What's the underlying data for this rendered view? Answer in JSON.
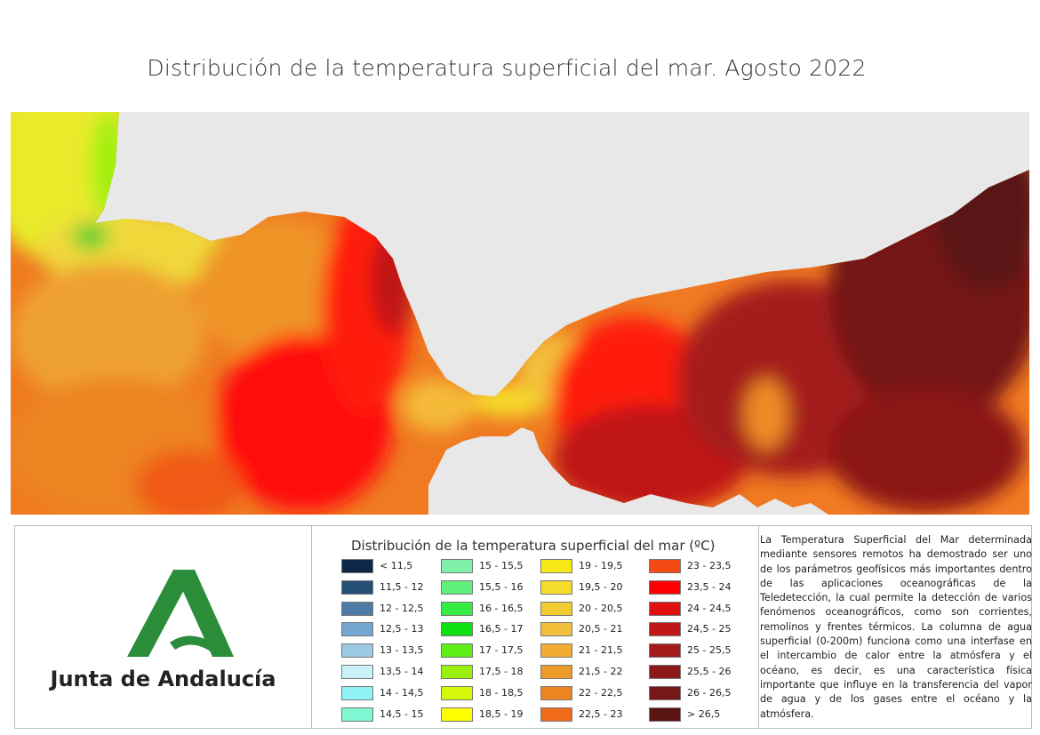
{
  "title": "Distribución de la temperatura superficial del mar. Agosto 2022",
  "logo": {
    "text": "Junta de Andalucía",
    "colors": [
      "#2b8c3a"
    ]
  },
  "legend": {
    "title": "Distribución de la temperatura superficial del mar (ºC)",
    "items": [
      {
        "label": "< 11,5",
        "color": "#0c2846"
      },
      {
        "label": "11,5 - 12",
        "color": "#254e76"
      },
      {
        "label": "12 - 12,5",
        "color": "#4d7ba6"
      },
      {
        "label": "12,5 - 13",
        "color": "#75a5d1"
      },
      {
        "label": "13 - 13,5",
        "color": "#9cc9e3"
      },
      {
        "label": "13,5 - 14",
        "color": "#c9f3f7"
      },
      {
        "label": "14 - 14,5",
        "color": "#8ff2f5"
      },
      {
        "label": "14,5 - 15",
        "color": "#7ef7d2"
      },
      {
        "label": "15 - 15,5",
        "color": "#7ff0a8"
      },
      {
        "label": "15,5 - 16",
        "color": "#5fef7a"
      },
      {
        "label": "16 - 16,5",
        "color": "#35ec42"
      },
      {
        "label": "16,5 - 17",
        "color": "#0fe00f"
      },
      {
        "label": "17 - 17,5",
        "color": "#5fef18"
      },
      {
        "label": "17,5 - 18",
        "color": "#9cf00e"
      },
      {
        "label": "18 - 18,5",
        "color": "#d6f808"
      },
      {
        "label": "18,5 - 19",
        "color": "#ffff00"
      },
      {
        "label": "19 - 19,5",
        "color": "#f5ea18"
      },
      {
        "label": "19,5 - 20",
        "color": "#f5dc2a"
      },
      {
        "label": "20 - 20,5",
        "color": "#f3cb30"
      },
      {
        "label": "20,5 - 21",
        "color": "#f2bf3a"
      },
      {
        "label": "21 - 21,5",
        "color": "#f0ad32"
      },
      {
        "label": "21,5 - 22",
        "color": "#ee9a28"
      },
      {
        "label": "22 - 22,5",
        "color": "#ec8420"
      },
      {
        "label": "22,5 - 23",
        "color": "#ef6a1a"
      },
      {
        "label": "23 - 23,5",
        "color": "#f44a14"
      },
      {
        "label": "23,5 - 24",
        "color": "#ff0000"
      },
      {
        "label": "24 - 24,5",
        "color": "#e01010"
      },
      {
        "label": "24,5 - 25",
        "color": "#c01818"
      },
      {
        "label": "25 - 25,5",
        "color": "#a51a1a"
      },
      {
        "label": "25,5 - 26",
        "color": "#8c1818"
      },
      {
        "label": "26 - 26,5",
        "color": "#751818"
      },
      {
        "label": "> 26,5",
        "color": "#5a1414"
      }
    ]
  },
  "description": "La Temperatura Superficial del Mar determinada mediante sensores remotos ha demostrado ser uno de los parámetros geofísicos más importantes dentro de las aplicaciones oceanográficas de la Teledetección, la cual permite la detección de varios fenómenos oceanográficos, como son corrientes, remolinos y frentes térmicos. La columna de agua superficial (0-200m) funciona como una interfase en el intercambio de calor entre la atmósfera y el océano, es decir, es una característica física importante que influye en la transferencia del vapor de agua y de los gases entre el océano y la atmósfera.",
  "map_colors": {
    "land": "#e8e8e8"
  }
}
